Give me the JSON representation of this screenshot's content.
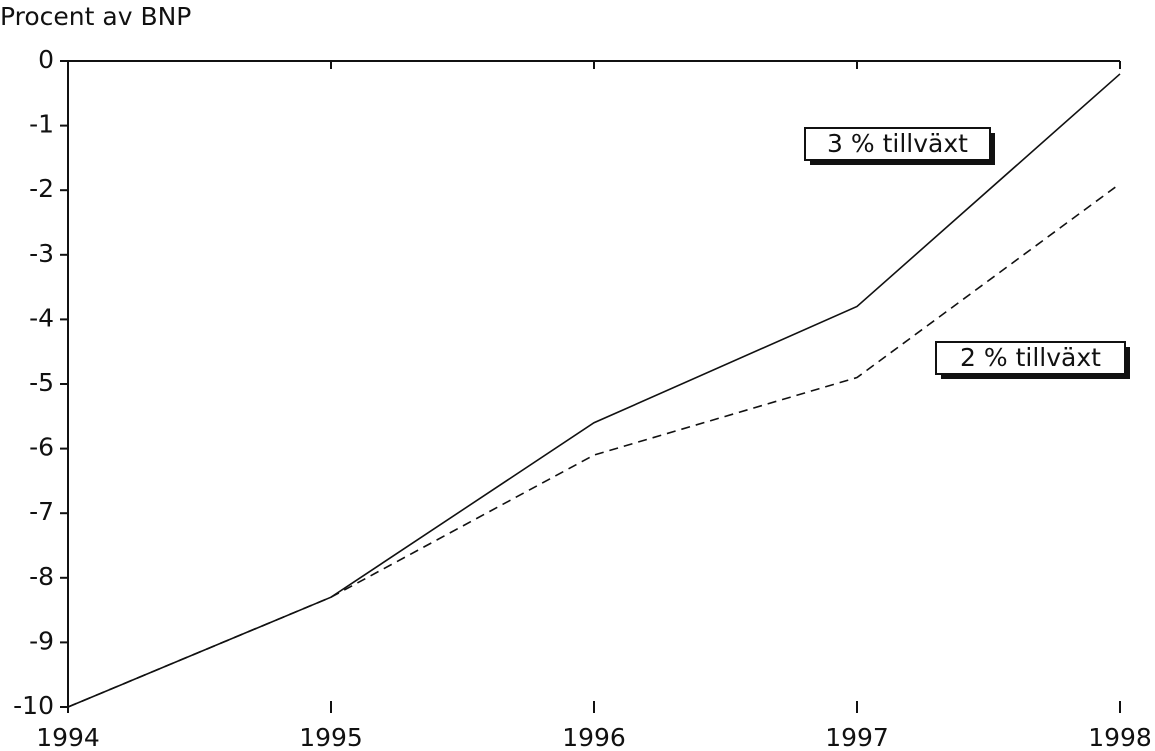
{
  "chart_data": {
    "type": "line",
    "title": "Procent av BNP",
    "x": [
      1994,
      1995,
      1996,
      1997,
      1998
    ],
    "xlim": [
      1994,
      1998
    ],
    "xticks": [
      1994,
      1995,
      1996,
      1997,
      1998
    ],
    "ylim": [
      -10,
      0
    ],
    "yticks": [
      0,
      -1,
      -2,
      -3,
      -4,
      -5,
      -6,
      -7,
      -8,
      -9,
      -10
    ],
    "series": [
      {
        "name": "3 % tillväxt",
        "color": "#111111",
        "dashed": false,
        "values": [
          -10,
          -8.3,
          -5.6,
          -3.8,
          -0.2
        ]
      },
      {
        "name": "2 % tillväxt",
        "color": "#111111",
        "dashed": true,
        "values": [
          -10,
          -8.3,
          -6.1,
          -4.9,
          -1.9
        ]
      }
    ]
  }
}
